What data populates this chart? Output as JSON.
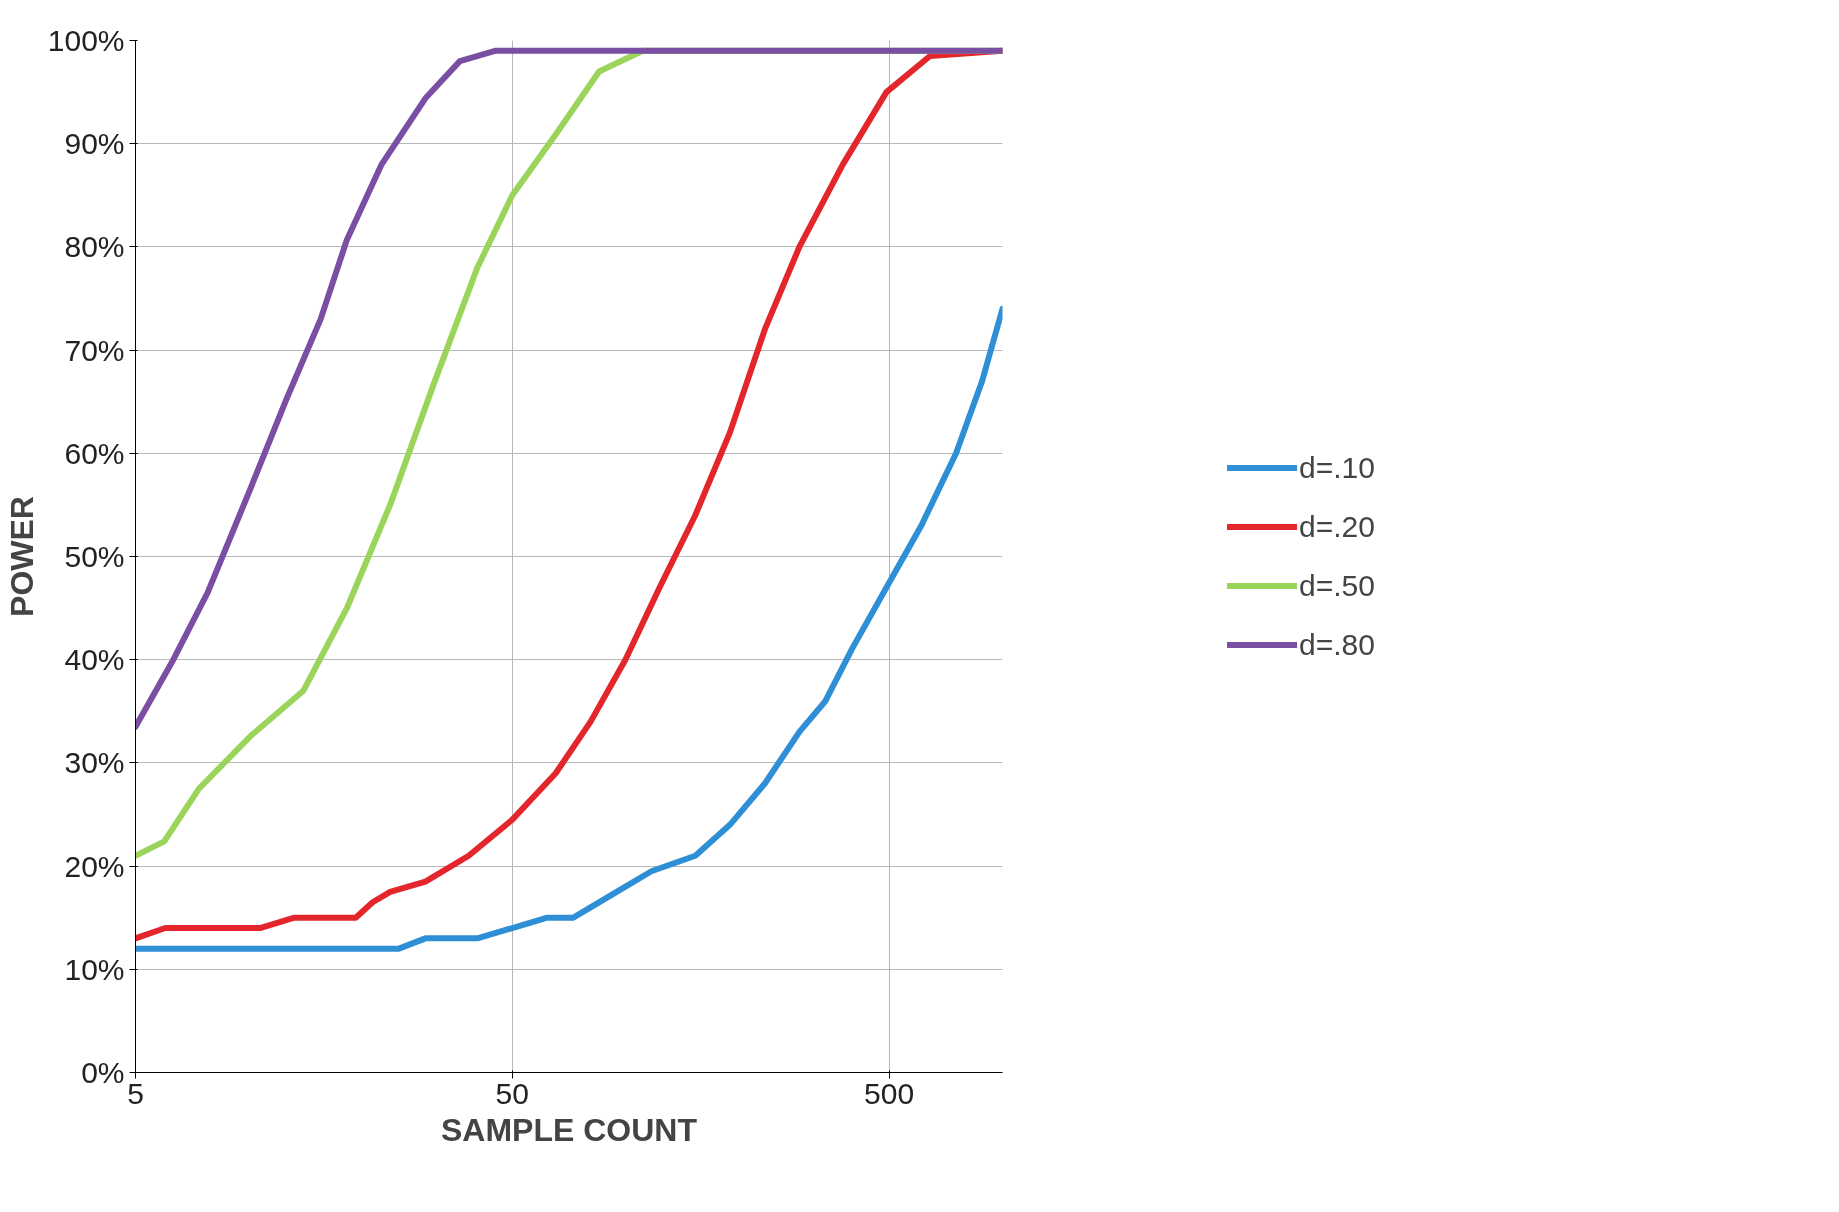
{
  "chart_data": {
    "type": "line",
    "xlabel": "SAMPLE COUNT",
    "ylabel": "POWER",
    "log": "x",
    "xlim": [
      5,
      1000
    ],
    "xticks": [
      5,
      50,
      500
    ],
    "ylim": [
      0,
      100
    ],
    "yticks": [
      {
        "value": 0,
        "label": "0%"
      },
      {
        "value": 10,
        "label": "10%"
      },
      {
        "value": 20,
        "label": "20%"
      },
      {
        "value": 30,
        "label": "30%"
      },
      {
        "value": 40,
        "label": "40%"
      },
      {
        "value": 50,
        "label": "50%"
      },
      {
        "value": 60,
        "label": "60%"
      },
      {
        "value": 70,
        "label": "70%"
      },
      {
        "value": 80,
        "label": "80%"
      },
      {
        "value": 90,
        "label": "90%"
      },
      {
        "value": 100,
        "label": "100%"
      }
    ],
    "grid": true,
    "legend": "right",
    "marker": "none",
    "line_style": "solid",
    "series": [
      {
        "name": "d=.10",
        "color": "#2e8fd6",
        "x": [
          5,
          10,
          25,
          29.4,
          40.4,
          50,
          61.9,
          72.6,
          94.6,
          117,
          153,
          189,
          234,
          289,
          339,
          398,
          492,
          609,
          753,
          883,
          1000
        ],
        "values": [
          12,
          12,
          12,
          13,
          13,
          14,
          15,
          15,
          17.5,
          19.5,
          21,
          24,
          28,
          33,
          36,
          41,
          47,
          53,
          60,
          67,
          74
        ]
      },
      {
        "name": "d=.20",
        "color": "#e3262b",
        "x": [
          5,
          6,
          10.7,
          13.2,
          19.2,
          21.3,
          23.7,
          29.4,
          38.3,
          50,
          65.2,
          80.7,
          99.8,
          123,
          153,
          189,
          234,
          289,
          377,
          492,
          642,
          1000
        ],
        "values": [
          13,
          14,
          14,
          15,
          15,
          16.5,
          17.5,
          18.5,
          21,
          24.5,
          29,
          34,
          40,
          47,
          54,
          62,
          72,
          80,
          88,
          95,
          98.5,
          99
        ]
      },
      {
        "name": "d=.50",
        "color": "#9bd45a",
        "x": [
          5,
          5.96,
          7.37,
          10.1,
          13.95,
          18.2,
          23.7,
          31,
          40.4,
          50,
          65.2,
          85,
          111,
          1000
        ],
        "values": [
          21,
          22.4,
          27.5,
          32.6,
          37,
          45,
          55,
          66.8,
          78,
          85,
          90.9,
          97,
          99,
          99
        ]
      },
      {
        "name": "d=.80",
        "color": "#7a4fa3",
        "x": [
          5,
          6.3,
          7.77,
          10.1,
          12.5,
          15.5,
          18.2,
          22.5,
          29.4,
          36.3,
          45,
          1000
        ],
        "values": [
          33.5,
          40,
          46.5,
          56.6,
          65,
          73,
          80.7,
          88,
          94.4,
          98,
          99,
          99
        ]
      }
    ]
  }
}
